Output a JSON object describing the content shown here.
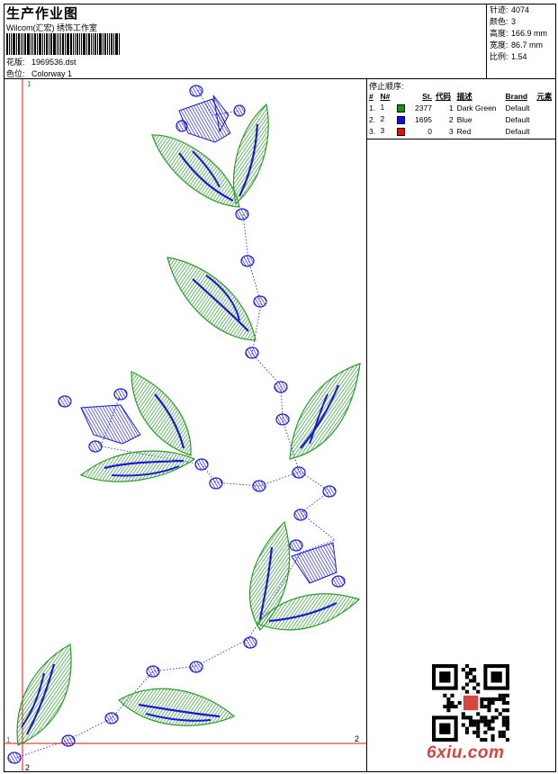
{
  "header": {
    "title": "生产作业图",
    "company": "Wilcom(汇宏) 绣饰工作室",
    "pattern_label": "花版:",
    "pattern_value": "1969536.dst",
    "colorway_label": "色位:",
    "colorway_value": "Colorway 1"
  },
  "stats": {
    "stitches_label": "针迹:",
    "stitches_value": "4074",
    "colors_label": "颜色:",
    "colors_value": "3",
    "height_label": "高度:",
    "height_value": "166.9 mm",
    "width_label": "宽度:",
    "width_value": "86.7 mm",
    "scale_label": "比例:",
    "scale_value": "1.54"
  },
  "design": {
    "marker_top": "1",
    "marker_right": "2",
    "marker_bottom_left": "1",
    "marker_bottom": "2"
  },
  "panel": {
    "title": "停止顺序:",
    "columns": [
      "#",
      "N#",
      "St.",
      "代码",
      "描述",
      "Brand",
      "元素"
    ],
    "rows": [
      {
        "idx": "1.",
        "n": "1",
        "color": "#1a8f1a",
        "stitches": "2377",
        "code": "1",
        "desc": "Dark Green",
        "brand": "Default"
      },
      {
        "idx": "2.",
        "n": "2",
        "color": "#1010d8",
        "stitches": "1695",
        "code": "2",
        "desc": "Blue",
        "brand": "Default"
      },
      {
        "idx": "3.",
        "n": "3",
        "color": "#e01010",
        "stitches": "0",
        "code": "3",
        "desc": "Red",
        "brand": "Default"
      }
    ]
  },
  "watermark": {
    "site": "6xiu.com",
    "stamp_icon": "qr-code-icon"
  },
  "colors": {
    "green": "#2a9a2a",
    "blue": "#1818d8",
    "red": "#e01010"
  }
}
